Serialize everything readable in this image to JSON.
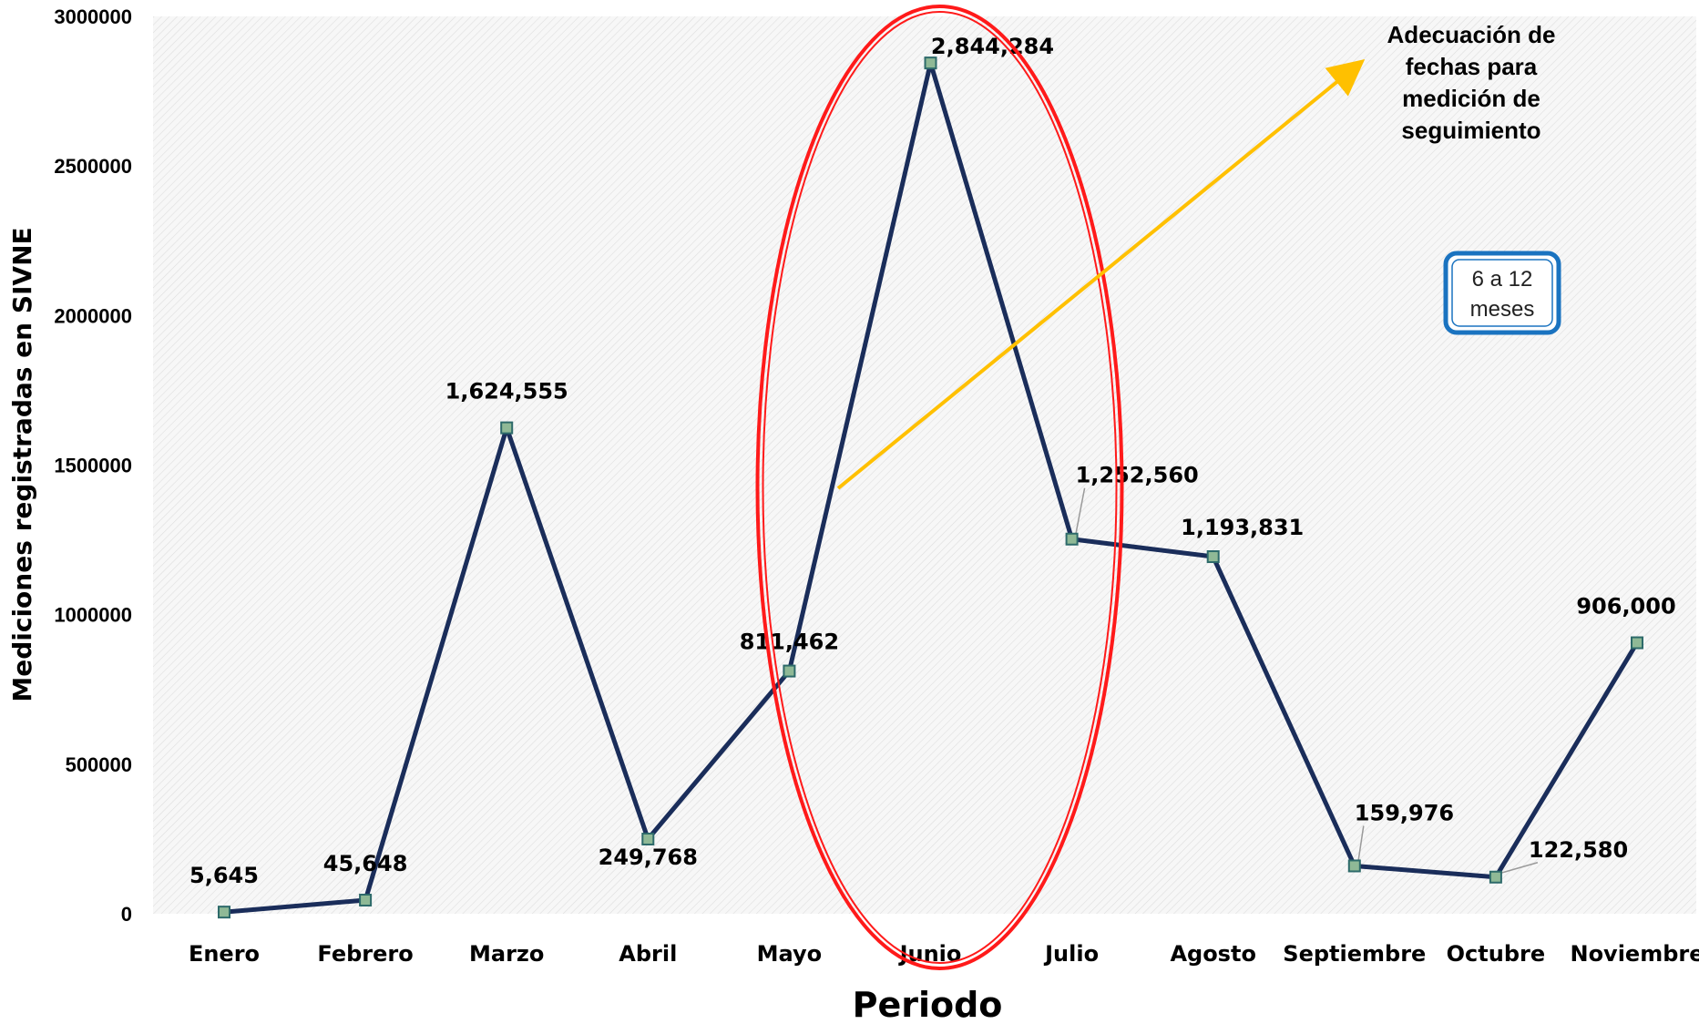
{
  "chart_data": {
    "type": "line",
    "xlabel": "Periodo",
    "ylabel": "Mediciones registradas en SIVNE",
    "ylim": [
      0,
      3000000
    ],
    "yticks": [
      0,
      500000,
      1000000,
      1500000,
      2000000,
      2500000,
      3000000
    ],
    "ytick_labels": [
      "0",
      "500000",
      "1000000",
      "1500000",
      "2000000",
      "2500000",
      "3000000"
    ],
    "categories": [
      "Enero",
      "Febrero",
      "Marzo",
      "Abril",
      "Mayo",
      "Junio",
      "Julio",
      "Agosto",
      "Septiembre",
      "Octubre",
      "Noviembre"
    ],
    "values": [
      5645,
      45648,
      1624555,
      249768,
      811462,
      2844284,
      1252560,
      1193831,
      159976,
      122580,
      906000
    ],
    "data_labels": [
      "5,645",
      "45,648",
      "1,624,555",
      "249,768",
      "811,462",
      "2,844,284",
      "1,252,560",
      "1,193,831",
      "159,976",
      "122,580",
      "906,000"
    ],
    "grid": false,
    "annotation_lines": [
      "Adecuación de",
      "fechas para",
      "medición de",
      "seguimiento"
    ],
    "box_text_lines": [
      "6 a 12",
      "meses"
    ],
    "colors": {
      "line": "#1a2d5a",
      "marker_fill": "#8fb996",
      "ellipse": "#ff1a1a",
      "arrow": "#ffc000",
      "box_border": "#1a73c0"
    }
  }
}
